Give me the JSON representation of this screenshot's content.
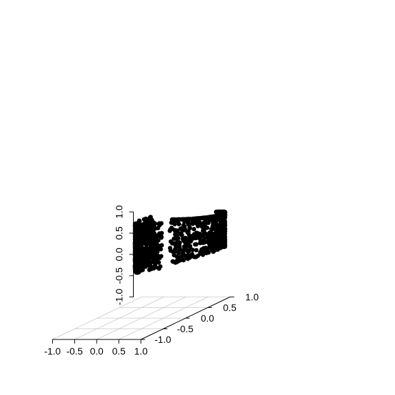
{
  "chart_data": {
    "type": "scatter",
    "projection": "3d",
    "title": "",
    "xlabel": "",
    "ylabel": "",
    "zlabel": "",
    "xlim": [
      -1.0,
      1.0
    ],
    "ylim": [
      -1.0,
      1.0
    ],
    "zlim": [
      -1.0,
      1.0
    ],
    "x_ticks": [
      -1.0,
      -0.5,
      0.0,
      0.5,
      1.0
    ],
    "y_ticks": [
      -1.0,
      -0.5,
      0.0,
      0.5,
      1.0
    ],
    "z_ticks": [
      -1.0,
      -0.5,
      0.0,
      0.5,
      1.0
    ],
    "x_tick_labels": [
      "-1.0",
      "-0.5",
      "0.0",
      "0.5",
      "1.0"
    ],
    "y_tick_labels": [
      "-1.0",
      "-0.5",
      "0.0",
      "0.5",
      "1.0"
    ],
    "z_tick_labels": [
      "-1.0",
      "-0.5",
      "0.0",
      "0.5",
      "1.0"
    ],
    "grid": true,
    "grid_plane": "z=-1 floor",
    "marker_color": "#000000",
    "grid_color": "#c8c8c8",
    "shape": "curved sheet (S-curve style)",
    "point_count_estimate": 1200
  }
}
